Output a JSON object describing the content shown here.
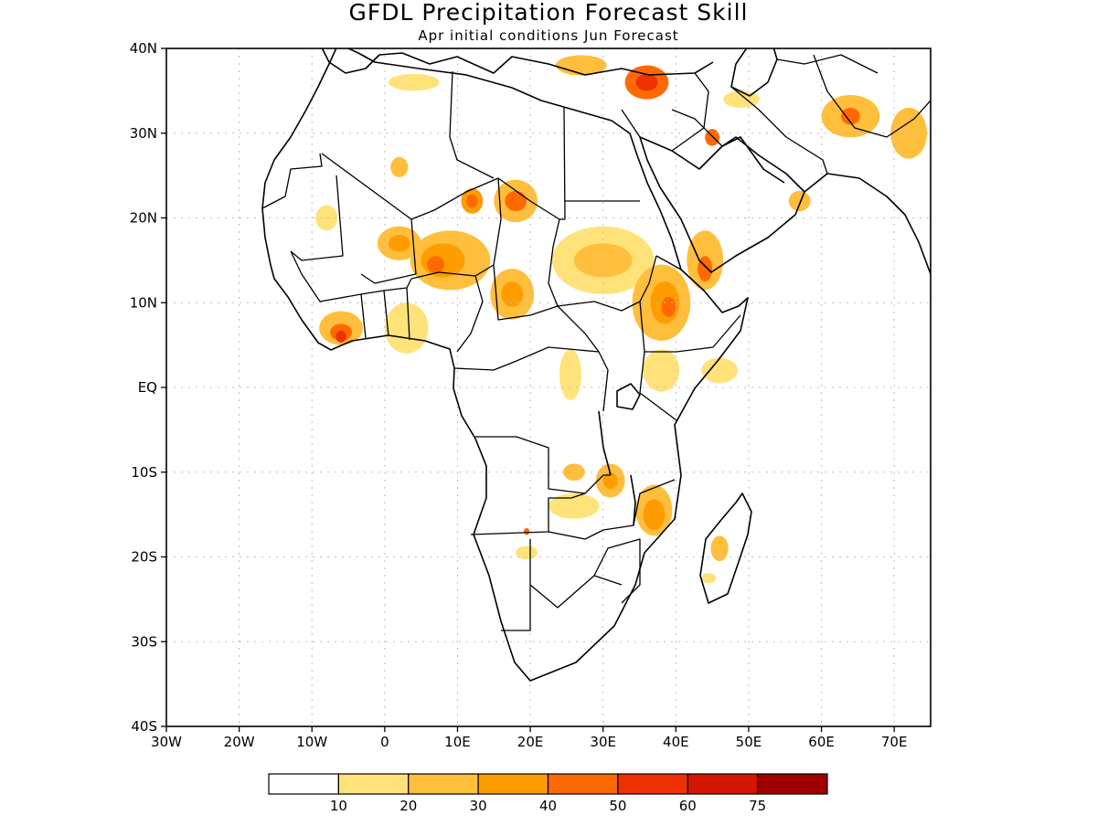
{
  "title": "GFDL Precipitation Forecast Skill",
  "subtitle": "Apr initial conditions  Jun Forecast",
  "map": {
    "lon_range": [
      -30,
      75
    ],
    "lat_range": [
      -40,
      40
    ],
    "x_ticks": [
      {
        "lon": -30,
        "label": "30W"
      },
      {
        "lon": -20,
        "label": "20W"
      },
      {
        "lon": -10,
        "label": "10W"
      },
      {
        "lon": 0,
        "label": "0"
      },
      {
        "lon": 10,
        "label": "10E"
      },
      {
        "lon": 20,
        "label": "20E"
      },
      {
        "lon": 30,
        "label": "30E"
      },
      {
        "lon": 40,
        "label": "40E"
      },
      {
        "lon": 50,
        "label": "50E"
      },
      {
        "lon": 60,
        "label": "60E"
      },
      {
        "lon": 70,
        "label": "70E"
      }
    ],
    "y_ticks": [
      {
        "lat": 40,
        "label": "40N"
      },
      {
        "lat": 30,
        "label": "30N"
      },
      {
        "lat": 20,
        "label": "20N"
      },
      {
        "lat": 10,
        "label": "10N"
      },
      {
        "lat": 0,
        "label": "EQ"
      },
      {
        "lat": -10,
        "label": "10S"
      },
      {
        "lat": -20,
        "label": "20S"
      },
      {
        "lat": -30,
        "label": "30S"
      },
      {
        "lat": -40,
        "label": "40S"
      }
    ],
    "grid": "dotted"
  },
  "colorbar": {
    "colors": [
      "#ffffff",
      "#ffe37a",
      "#ffbe3c",
      "#ff9c00",
      "#ff6a00",
      "#ef3000",
      "#d41500",
      "#a00000"
    ],
    "labels": [
      "10",
      "20",
      "30",
      "40",
      "50",
      "60",
      "75"
    ]
  },
  "skill_regions": [
    {
      "lon": 4,
      "lat": 36,
      "rx": 3.5,
      "ry": 1.0,
      "level": 1
    },
    {
      "lon": 27,
      "lat": 38,
      "rx": 3.5,
      "ry": 1.2,
      "level": 2
    },
    {
      "lon": 36,
      "lat": 36,
      "rx": 3.0,
      "ry": 2.0,
      "level": 4
    },
    {
      "lon": 36,
      "lat": 36,
      "rx": 1.5,
      "ry": 1.0,
      "level": 5
    },
    {
      "lon": 64,
      "lat": 32,
      "rx": 4.0,
      "ry": 2.5,
      "level": 2
    },
    {
      "lon": 64,
      "lat": 32,
      "rx": 1.3,
      "ry": 1.0,
      "level": 4
    },
    {
      "lon": 49,
      "lat": 34,
      "rx": 2.5,
      "ry": 1.0,
      "level": 1
    },
    {
      "lon": 45,
      "lat": 29.5,
      "rx": 1.0,
      "ry": 1.0,
      "level": 4
    },
    {
      "lon": 72,
      "lat": 30,
      "rx": 2.5,
      "ry": 3.0,
      "level": 2
    },
    {
      "lon": 2,
      "lat": 26,
      "rx": 1.2,
      "ry": 1.2,
      "level": 2
    },
    {
      "lon": 12,
      "lat": 22,
      "rx": 1.5,
      "ry": 1.5,
      "level": 3
    },
    {
      "lon": 12,
      "lat": 22,
      "rx": 0.8,
      "ry": 0.8,
      "level": 4
    },
    {
      "lon": 18,
      "lat": 22,
      "rx": 3.0,
      "ry": 2.5,
      "level": 2
    },
    {
      "lon": 18,
      "lat": 22,
      "rx": 1.5,
      "ry": 1.2,
      "level": 4
    },
    {
      "lon": -8,
      "lat": 20,
      "rx": 1.5,
      "ry": 1.5,
      "level": 1
    },
    {
      "lon": 2,
      "lat": 17,
      "rx": 3.0,
      "ry": 2.0,
      "level": 2
    },
    {
      "lon": 2,
      "lat": 17,
      "rx": 1.5,
      "ry": 1.0,
      "level": 3
    },
    {
      "lon": 9,
      "lat": 15,
      "rx": 5.5,
      "ry": 3.5,
      "level": 2
    },
    {
      "lon": 8,
      "lat": 15,
      "rx": 3.0,
      "ry": 2.0,
      "level": 3
    },
    {
      "lon": 7,
      "lat": 14.5,
      "rx": 1.2,
      "ry": 1.0,
      "level": 4
    },
    {
      "lon": 17.5,
      "lat": 11,
      "rx": 3.0,
      "ry": 3.0,
      "level": 2
    },
    {
      "lon": 17.5,
      "lat": 11,
      "rx": 1.5,
      "ry": 1.5,
      "level": 3
    },
    {
      "lon": 30,
      "lat": 15,
      "rx": 7.0,
      "ry": 4.0,
      "level": 1
    },
    {
      "lon": 30,
      "lat": 15,
      "rx": 4.0,
      "ry": 2.0,
      "level": 2
    },
    {
      "lon": 38,
      "lat": 10,
      "rx": 4.0,
      "ry": 4.5,
      "level": 2
    },
    {
      "lon": 38.5,
      "lat": 10,
      "rx": 2.0,
      "ry": 2.5,
      "level": 3
    },
    {
      "lon": 39,
      "lat": 9.5,
      "rx": 1.0,
      "ry": 1.2,
      "level": 4
    },
    {
      "lon": 44,
      "lat": 15,
      "rx": 2.5,
      "ry": 3.5,
      "level": 2
    },
    {
      "lon": 44,
      "lat": 14,
      "rx": 1.0,
      "ry": 1.5,
      "level": 4
    },
    {
      "lon": 57,
      "lat": 22,
      "rx": 1.5,
      "ry": 1.2,
      "level": 2
    },
    {
      "lon": -6,
      "lat": 7,
      "rx": 3.0,
      "ry": 2.0,
      "level": 2
    },
    {
      "lon": -6,
      "lat": 6.5,
      "rx": 1.5,
      "ry": 1.0,
      "level": 4
    },
    {
      "lon": -6,
      "lat": 6,
      "rx": 0.7,
      "ry": 0.7,
      "level": 5
    },
    {
      "lon": 3,
      "lat": 7,
      "rx": 3.0,
      "ry": 3.0,
      "level": 1
    },
    {
      "lon": 25.5,
      "lat": 1.5,
      "rx": 1.5,
      "ry": 3.0,
      "level": 1
    },
    {
      "lon": 38,
      "lat": 2,
      "rx": 2.5,
      "ry": 2.5,
      "level": 1
    },
    {
      "lon": 46,
      "lat": 2,
      "rx": 2.5,
      "ry": 1.5,
      "level": 1
    },
    {
      "lon": 26,
      "lat": -10,
      "rx": 1.5,
      "ry": 1.0,
      "level": 2
    },
    {
      "lon": 31,
      "lat": -11,
      "rx": 2.0,
      "ry": 2.0,
      "level": 2
    },
    {
      "lon": 31,
      "lat": -11,
      "rx": 1.0,
      "ry": 1.0,
      "level": 3
    },
    {
      "lon": 26,
      "lat": -14,
      "rx": 3.5,
      "ry": 1.5,
      "level": 1
    },
    {
      "lon": 37,
      "lat": -14.5,
      "rx": 2.5,
      "ry": 3.0,
      "level": 2
    },
    {
      "lon": 37,
      "lat": -15,
      "rx": 1.5,
      "ry": 1.8,
      "level": 3
    },
    {
      "lon": 19.5,
      "lat": -19.5,
      "rx": 1.5,
      "ry": 0.8,
      "level": 1
    },
    {
      "lon": 19.5,
      "lat": -17,
      "rx": 0.4,
      "ry": 0.4,
      "level": 4
    },
    {
      "lon": 46,
      "lat": -19,
      "rx": 1.2,
      "ry": 1.5,
      "level": 2
    },
    {
      "lon": 44.5,
      "lat": -22.5,
      "rx": 1.0,
      "ry": 0.6,
      "level": 1
    }
  ]
}
